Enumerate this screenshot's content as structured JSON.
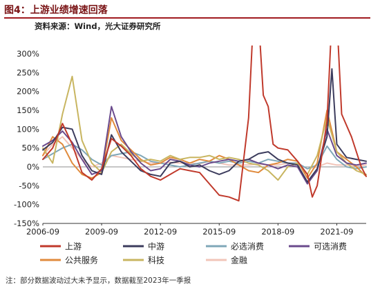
{
  "header": {
    "figure_label": "图4：",
    "title": "上游业绩增速回落",
    "source": "资料来源：Wind，光大证券研究所"
  },
  "note": "注：部分数据波动过大未予显示，数据截至2023年一季报",
  "colors": {
    "upstream": "#c0392b",
    "midstream": "#3b3b5c",
    "staples": "#7fa7b8",
    "discretionary": "#6a4a8c",
    "utilities": "#e08a3c",
    "tech": "#c8b560",
    "finance": "#f2c4b8",
    "title_color": "#7a1416",
    "rule_color": "#a01a1f"
  },
  "chart_data": {
    "type": "line",
    "x_unit": "quarter",
    "x_range": [
      "2006-09",
      "2023-03"
    ],
    "xticks": [
      "2006-09",
      "2009-09",
      "2012-09",
      "2015-09",
      "2018-09",
      "2021-09"
    ],
    "yticks": [
      "300%",
      "250%",
      "200%",
      "150%",
      "100%",
      "50%",
      "0%",
      "-50%",
      "-100%",
      "-150%"
    ],
    "ylim": [
      -150,
      300
    ],
    "clip_note": "values above 300% run off the top of the plot",
    "legend_position": "bottom",
    "series": [
      {
        "name": "上游",
        "color_key": "upstream",
        "points": [
          [
            "2006-09",
            20
          ],
          [
            "2007-03",
            50
          ],
          [
            "2007-09",
            115
          ],
          [
            "2008-03",
            60
          ],
          [
            "2008-09",
            -15
          ],
          [
            "2009-03",
            -35
          ],
          [
            "2009-09",
            -5
          ],
          [
            "2010-03",
            75
          ],
          [
            "2010-09",
            55
          ],
          [
            "2011-03",
            30
          ],
          [
            "2011-09",
            -5
          ],
          [
            "2012-03",
            -25
          ],
          [
            "2012-09",
            -35
          ],
          [
            "2013-03",
            -20
          ],
          [
            "2013-09",
            -5
          ],
          [
            "2014-03",
            -10
          ],
          [
            "2014-09",
            -15
          ],
          [
            "2015-03",
            -45
          ],
          [
            "2015-09",
            -75
          ],
          [
            "2016-03",
            -80
          ],
          [
            "2016-09",
            -90
          ],
          [
            "2017-03",
            130
          ],
          [
            "2017-06",
            400
          ],
          [
            "2017-09",
            400
          ],
          [
            "2017-12",
            190
          ],
          [
            "2018-03",
            160
          ],
          [
            "2018-06",
            60
          ],
          [
            "2018-09",
            50
          ],
          [
            "2019-03",
            45
          ],
          [
            "2019-09",
            15
          ],
          [
            "2020-03",
            -20
          ],
          [
            "2020-06",
            -80
          ],
          [
            "2020-09",
            -50
          ],
          [
            "2021-03",
            120
          ],
          [
            "2021-06",
            400
          ],
          [
            "2021-09",
            400
          ],
          [
            "2021-12",
            140
          ],
          [
            "2022-06",
            80
          ],
          [
            "2022-12",
            0
          ],
          [
            "2023-03",
            -25
          ]
        ]
      },
      {
        "name": "中游",
        "color_key": "midstream",
        "points": [
          [
            "2006-09",
            45
          ],
          [
            "2007-03",
            65
          ],
          [
            "2007-09",
            105
          ],
          [
            "2008-03",
            100
          ],
          [
            "2008-09",
            30
          ],
          [
            "2009-03",
            -10
          ],
          [
            "2009-09",
            -20
          ],
          [
            "2010-03",
            85
          ],
          [
            "2010-09",
            40
          ],
          [
            "2011-03",
            15
          ],
          [
            "2011-09",
            -10
          ],
          [
            "2012-03",
            -20
          ],
          [
            "2012-09",
            -25
          ],
          [
            "2013-03",
            10
          ],
          [
            "2013-09",
            15
          ],
          [
            "2014-03",
            0
          ],
          [
            "2014-09",
            5
          ],
          [
            "2015-03",
            -10
          ],
          [
            "2015-09",
            -20
          ],
          [
            "2016-03",
            -10
          ],
          [
            "2016-09",
            15
          ],
          [
            "2017-03",
            20
          ],
          [
            "2017-09",
            35
          ],
          [
            "2018-03",
            40
          ],
          [
            "2018-09",
            20
          ],
          [
            "2019-03",
            10
          ],
          [
            "2019-09",
            5
          ],
          [
            "2020-03",
            -40
          ],
          [
            "2020-09",
            -5
          ],
          [
            "2021-03",
            80
          ],
          [
            "2021-06",
            260
          ],
          [
            "2021-09",
            60
          ],
          [
            "2022-03",
            25
          ],
          [
            "2022-09",
            20
          ],
          [
            "2023-03",
            15
          ]
        ]
      },
      {
        "name": "必选消费",
        "color_key": "staples",
        "points": [
          [
            "2006-09",
            20
          ],
          [
            "2007-03",
            35
          ],
          [
            "2007-09",
            50
          ],
          [
            "2008-03",
            60
          ],
          [
            "2008-09",
            45
          ],
          [
            "2009-03",
            20
          ],
          [
            "2009-09",
            5
          ],
          [
            "2010-03",
            30
          ],
          [
            "2010-09",
            35
          ],
          [
            "2011-03",
            40
          ],
          [
            "2011-09",
            30
          ],
          [
            "2012-03",
            15
          ],
          [
            "2012-09",
            10
          ],
          [
            "2013-03",
            5
          ],
          [
            "2013-09",
            0
          ],
          [
            "2014-03",
            5
          ],
          [
            "2014-09",
            10
          ],
          [
            "2015-03",
            15
          ],
          [
            "2015-09",
            10
          ],
          [
            "2016-03",
            15
          ],
          [
            "2016-09",
            10
          ],
          [
            "2017-03",
            15
          ],
          [
            "2017-09",
            10
          ],
          [
            "2018-03",
            20
          ],
          [
            "2018-09",
            15
          ],
          [
            "2019-03",
            10
          ],
          [
            "2019-09",
            10
          ],
          [
            "2020-03",
            -5
          ],
          [
            "2020-09",
            5
          ],
          [
            "2021-03",
            55
          ],
          [
            "2021-09",
            20
          ],
          [
            "2022-03",
            0
          ],
          [
            "2022-09",
            -5
          ],
          [
            "2023-03",
            0
          ]
        ]
      },
      {
        "name": "可选消费",
        "color_key": "discretionary",
        "points": [
          [
            "2006-09",
            55
          ],
          [
            "2007-03",
            70
          ],
          [
            "2007-09",
            95
          ],
          [
            "2008-03",
            65
          ],
          [
            "2008-09",
            20
          ],
          [
            "2009-03",
            -20
          ],
          [
            "2009-09",
            -10
          ],
          [
            "2010-03",
            160
          ],
          [
            "2010-09",
            80
          ],
          [
            "2011-03",
            40
          ],
          [
            "2011-09",
            10
          ],
          [
            "2012-03",
            -10
          ],
          [
            "2012-09",
            -5
          ],
          [
            "2013-03",
            20
          ],
          [
            "2013-09",
            15
          ],
          [
            "2014-03",
            5
          ],
          [
            "2014-09",
            0
          ],
          [
            "2015-03",
            10
          ],
          [
            "2015-09",
            15
          ],
          [
            "2016-03",
            20
          ],
          [
            "2016-09",
            15
          ],
          [
            "2017-03",
            20
          ],
          [
            "2017-09",
            10
          ],
          [
            "2018-03",
            5
          ],
          [
            "2018-09",
            -5
          ],
          [
            "2019-03",
            5
          ],
          [
            "2019-09",
            0
          ],
          [
            "2020-03",
            -45
          ],
          [
            "2020-09",
            -10
          ],
          [
            "2021-03",
            100
          ],
          [
            "2021-09",
            30
          ],
          [
            "2022-03",
            10
          ],
          [
            "2022-09",
            5
          ],
          [
            "2023-03",
            10
          ]
        ]
      },
      {
        "name": "公共服务",
        "color_key": "utilities",
        "points": [
          [
            "2006-09",
            30
          ],
          [
            "2007-03",
            80
          ],
          [
            "2007-09",
            60
          ],
          [
            "2008-03",
            10
          ],
          [
            "2008-09",
            -20
          ],
          [
            "2009-03",
            -30
          ],
          [
            "2009-09",
            -15
          ],
          [
            "2010-03",
            130
          ],
          [
            "2010-09",
            70
          ],
          [
            "2011-03",
            45
          ],
          [
            "2011-09",
            20
          ],
          [
            "2012-03",
            5
          ],
          [
            "2012-09",
            10
          ],
          [
            "2013-03",
            25
          ],
          [
            "2013-09",
            20
          ],
          [
            "2014-03",
            10
          ],
          [
            "2014-09",
            20
          ],
          [
            "2015-03",
            15
          ],
          [
            "2015-09",
            30
          ],
          [
            "2016-03",
            20
          ],
          [
            "2016-09",
            5
          ],
          [
            "2017-03",
            -10
          ],
          [
            "2017-09",
            -15
          ],
          [
            "2018-03",
            5
          ],
          [
            "2018-09",
            10
          ],
          [
            "2019-03",
            20
          ],
          [
            "2019-09",
            15
          ],
          [
            "2020-03",
            -30
          ],
          [
            "2020-09",
            10
          ],
          [
            "2021-03",
            150
          ],
          [
            "2021-09",
            40
          ],
          [
            "2022-03",
            20
          ],
          [
            "2022-09",
            0
          ],
          [
            "2023-03",
            -25
          ]
        ]
      },
      {
        "name": "科技",
        "color_key": "tech",
        "points": [
          [
            "2006-09",
            50
          ],
          [
            "2007-03",
            10
          ],
          [
            "2007-09",
            140
          ],
          [
            "2008-03",
            240
          ],
          [
            "2008-09",
            70
          ],
          [
            "2009-03",
            10
          ],
          [
            "2009-09",
            -15
          ],
          [
            "2010-03",
            40
          ],
          [
            "2010-09",
            60
          ],
          [
            "2011-03",
            35
          ],
          [
            "2011-09",
            15
          ],
          [
            "2012-03",
            20
          ],
          [
            "2012-09",
            15
          ],
          [
            "2013-03",
            30
          ],
          [
            "2013-09",
            20
          ],
          [
            "2014-03",
            25
          ],
          [
            "2014-09",
            25
          ],
          [
            "2015-03",
            30
          ],
          [
            "2015-09",
            20
          ],
          [
            "2016-03",
            25
          ],
          [
            "2016-09",
            20
          ],
          [
            "2017-03",
            10
          ],
          [
            "2017-09",
            5
          ],
          [
            "2018-03",
            -10
          ],
          [
            "2018-09",
            -35
          ],
          [
            "2019-03",
            0
          ],
          [
            "2019-09",
            10
          ],
          [
            "2020-03",
            -20
          ],
          [
            "2020-09",
            30
          ],
          [
            "2021-03",
            130
          ],
          [
            "2021-09",
            40
          ],
          [
            "2022-03",
            10
          ],
          [
            "2022-09",
            -10
          ],
          [
            "2023-03",
            -20
          ]
        ]
      },
      {
        "name": "金融",
        "color_key": "finance",
        "points": [
          [
            "2006-09",
            30
          ],
          [
            "2007-03",
            60
          ],
          [
            "2007-09",
            80
          ],
          [
            "2008-03",
            50
          ],
          [
            "2008-09",
            20
          ],
          [
            "2009-03",
            0
          ],
          [
            "2009-09",
            10
          ],
          [
            "2010-03",
            30
          ],
          [
            "2010-09",
            25
          ],
          [
            "2011-03",
            20
          ],
          [
            "2011-09",
            15
          ],
          [
            "2012-03",
            10
          ],
          [
            "2012-09",
            10
          ],
          [
            "2013-03",
            12
          ],
          [
            "2013-09",
            10
          ],
          [
            "2014-03",
            10
          ],
          [
            "2014-09",
            8
          ],
          [
            "2015-03",
            15
          ],
          [
            "2015-09",
            10
          ],
          [
            "2016-03",
            5
          ],
          [
            "2016-09",
            5
          ],
          [
            "2017-03",
            5
          ],
          [
            "2017-09",
            8
          ],
          [
            "2018-03",
            5
          ],
          [
            "2018-09",
            5
          ],
          [
            "2019-03",
            10
          ],
          [
            "2019-09",
            8
          ],
          [
            "2020-03",
            -5
          ],
          [
            "2020-09",
            0
          ],
          [
            "2021-03",
            10
          ],
          [
            "2021-09",
            5
          ],
          [
            "2022-03",
            5
          ],
          [
            "2022-09",
            3
          ],
          [
            "2023-03",
            5
          ]
        ]
      }
    ]
  }
}
